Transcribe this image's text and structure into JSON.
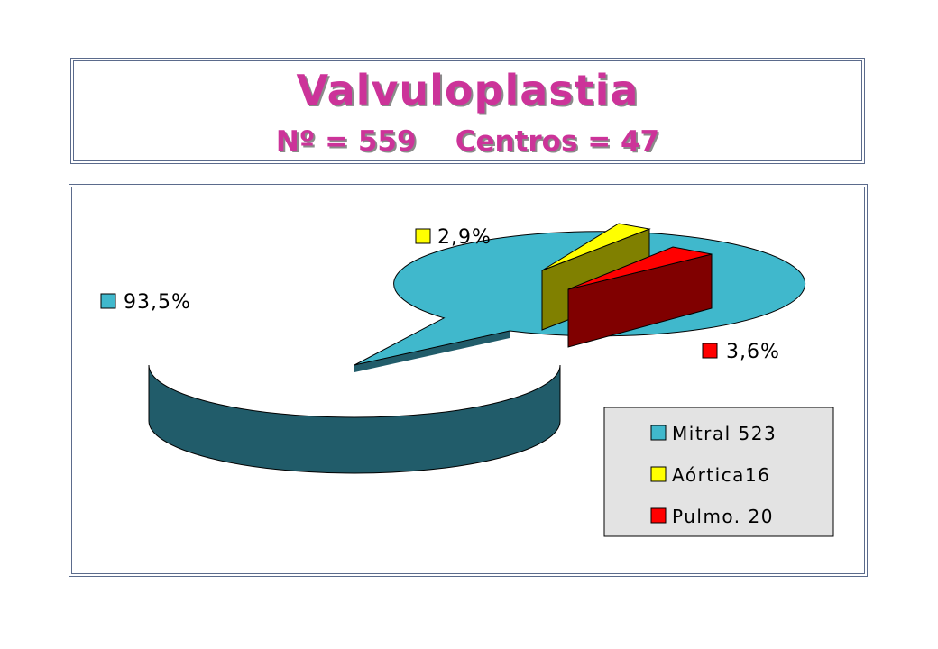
{
  "title": {
    "main": "Valvuloplastia",
    "subtitle": "Nº = 559    Centros = 47"
  },
  "chart_data": {
    "type": "pie",
    "three_d": true,
    "categories": [
      "Mitral 523",
      "Aórtica16",
      "Pulmo. 20"
    ],
    "values": [
      523,
      16,
      20
    ],
    "percent_labels": [
      "93,5%",
      "2,9%",
      "3,6%"
    ],
    "colors": {
      "mitral_top": "#40b8cc",
      "mitral_side": "#215c6a",
      "aortica_top": "#ffff00",
      "aortica_side": "#808000",
      "pulmo_top": "#ff0000",
      "pulmo_side": "#800000"
    },
    "legend": {
      "placement": "bottom-right",
      "items": [
        "Mitral 523",
        "Aórtica16",
        "Pulmo. 20"
      ]
    }
  }
}
